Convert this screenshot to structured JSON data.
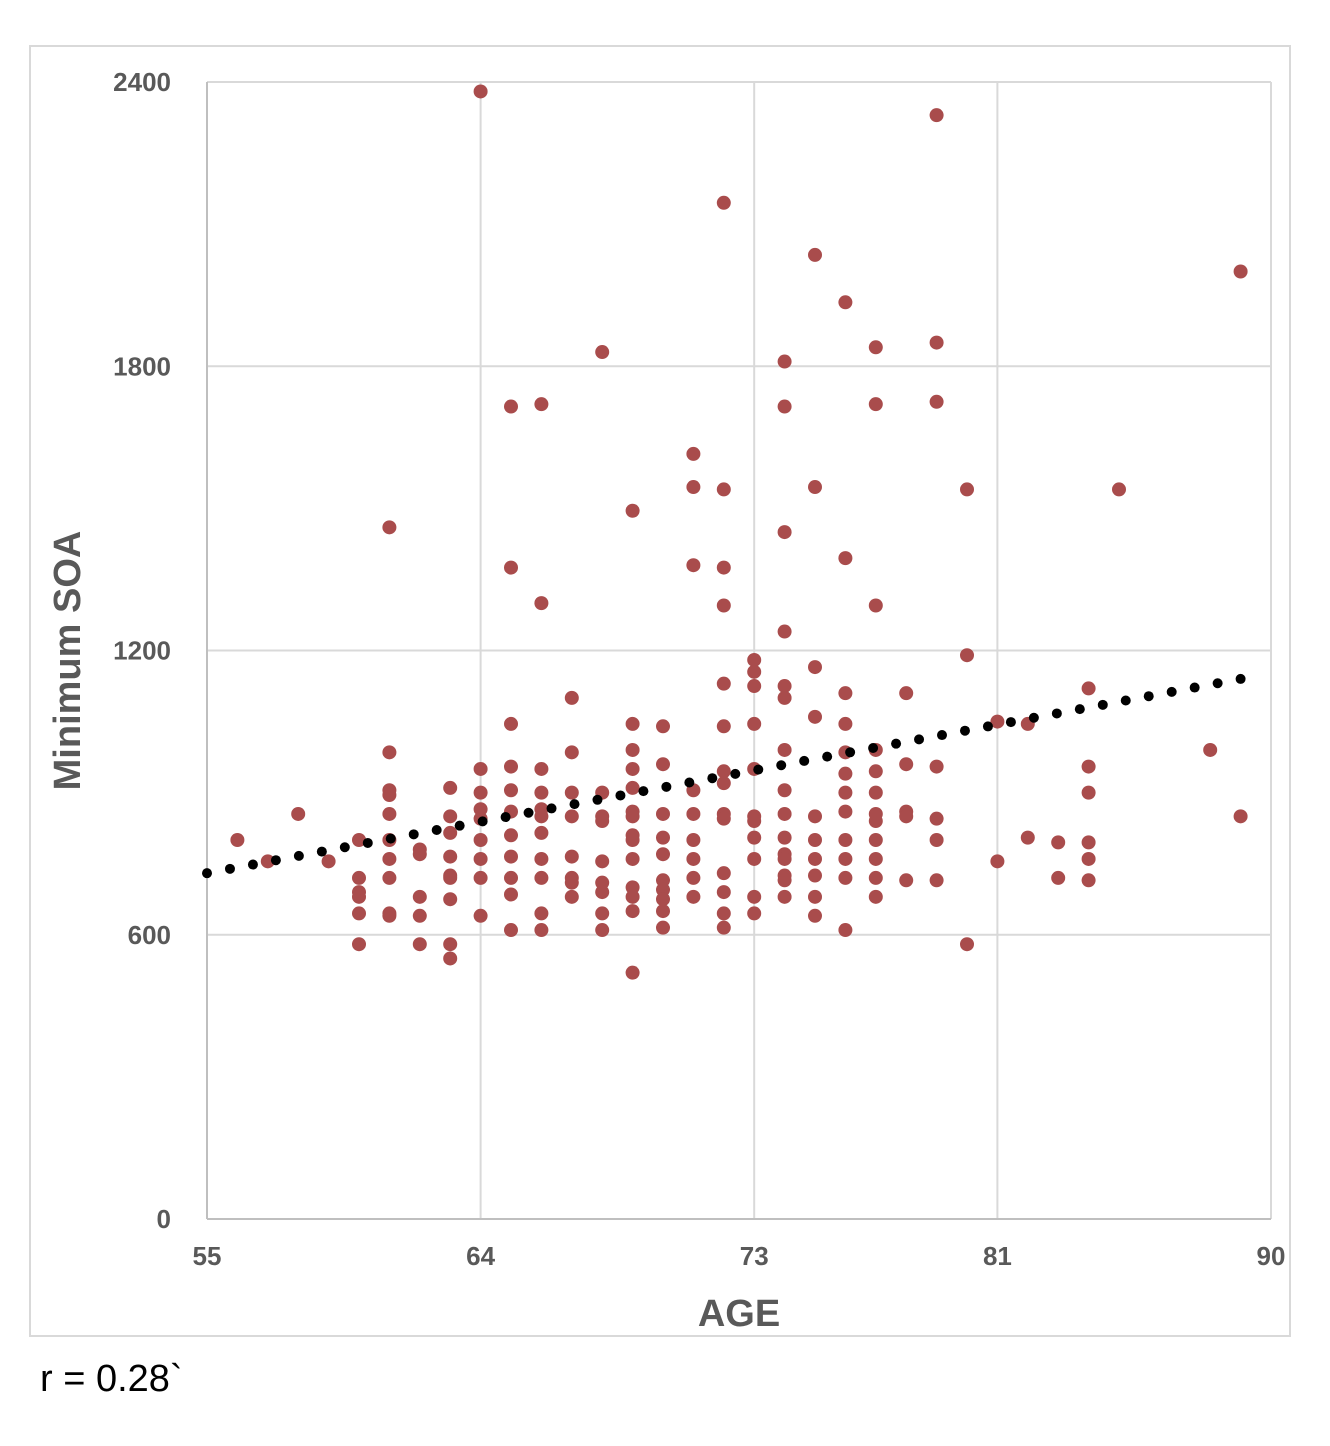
{
  "chart_data": {
    "type": "scatter",
    "title": "",
    "xlabel": "AGE",
    "ylabel": "Minimum SOA",
    "x_ticks": [
      55,
      64,
      73,
      81,
      90
    ],
    "y_ticks": [
      0,
      600,
      1200,
      1800,
      2400
    ],
    "xlim": [
      55,
      90
    ],
    "ylim": [
      0,
      2400
    ],
    "grid": true,
    "legend": "none",
    "point_color": "#a94c4c",
    "trend_color": "#000000",
    "trendline": {
      "style": "dotted",
      "from": [
        55,
        730
      ],
      "to": [
        89,
        1140
      ]
    },
    "series": [
      {
        "points": [
          [
            56,
            800
          ],
          [
            57,
            755
          ],
          [
            58,
            855
          ],
          [
            59,
            755
          ],
          [
            60,
            800
          ],
          [
            60,
            720
          ],
          [
            60,
            690
          ],
          [
            60,
            680
          ],
          [
            60,
            645
          ],
          [
            60,
            580
          ],
          [
            61,
            1460
          ],
          [
            61,
            985
          ],
          [
            61,
            905
          ],
          [
            61,
            895
          ],
          [
            61,
            855
          ],
          [
            61,
            800
          ],
          [
            61,
            760
          ],
          [
            61,
            720
          ],
          [
            61,
            645
          ],
          [
            61,
            640
          ],
          [
            62,
            780
          ],
          [
            62,
            770
          ],
          [
            62,
            680
          ],
          [
            62,
            640
          ],
          [
            62,
            580
          ],
          [
            63,
            910
          ],
          [
            63,
            850
          ],
          [
            63,
            815
          ],
          [
            63,
            765
          ],
          [
            63,
            725
          ],
          [
            63,
            720
          ],
          [
            63,
            675
          ],
          [
            63,
            580
          ],
          [
            63,
            550
          ],
          [
            64,
            2380
          ],
          [
            64,
            950
          ],
          [
            64,
            900
          ],
          [
            64,
            865
          ],
          [
            64,
            845
          ],
          [
            64,
            800
          ],
          [
            64,
            760
          ],
          [
            64,
            720
          ],
          [
            64,
            640
          ],
          [
            65,
            1715
          ],
          [
            65,
            1375
          ],
          [
            65,
            1045
          ],
          [
            65,
            955
          ],
          [
            65,
            905
          ],
          [
            65,
            860
          ],
          [
            65,
            810
          ],
          [
            65,
            765
          ],
          [
            65,
            720
          ],
          [
            65,
            685
          ],
          [
            65,
            610
          ],
          [
            66,
            1720
          ],
          [
            66,
            1300
          ],
          [
            66,
            950
          ],
          [
            66,
            900
          ],
          [
            66,
            865
          ],
          [
            66,
            850
          ],
          [
            66,
            815
          ],
          [
            66,
            760
          ],
          [
            66,
            720
          ],
          [
            66,
            645
          ],
          [
            66,
            610
          ],
          [
            67,
            1100
          ],
          [
            67,
            985
          ],
          [
            67,
            900
          ],
          [
            67,
            850
          ],
          [
            67,
            765
          ],
          [
            67,
            720
          ],
          [
            67,
            710
          ],
          [
            67,
            680
          ],
          [
            68,
            1830
          ],
          [
            68,
            900
          ],
          [
            68,
            850
          ],
          [
            68,
            840
          ],
          [
            68,
            755
          ],
          [
            68,
            710
          ],
          [
            68,
            690
          ],
          [
            68,
            645
          ],
          [
            68,
            610
          ],
          [
            69,
            1495
          ],
          [
            69,
            1045
          ],
          [
            69,
            990
          ],
          [
            69,
            950
          ],
          [
            69,
            910
          ],
          [
            69,
            860
          ],
          [
            69,
            850
          ],
          [
            69,
            810
          ],
          [
            69,
            800
          ],
          [
            69,
            760
          ],
          [
            69,
            700
          ],
          [
            69,
            680
          ],
          [
            69,
            650
          ],
          [
            69,
            520
          ],
          [
            70,
            1040
          ],
          [
            70,
            960
          ],
          [
            70,
            855
          ],
          [
            70,
            805
          ],
          [
            70,
            770
          ],
          [
            70,
            715
          ],
          [
            70,
            695
          ],
          [
            70,
            675
          ],
          [
            70,
            650
          ],
          [
            70,
            615
          ],
          [
            71,
            1615
          ],
          [
            71,
            1545
          ],
          [
            71,
            1380
          ],
          [
            71,
            905
          ],
          [
            71,
            855
          ],
          [
            71,
            800
          ],
          [
            71,
            760
          ],
          [
            71,
            720
          ],
          [
            71,
            680
          ],
          [
            72,
            2145
          ],
          [
            72,
            1540
          ],
          [
            72,
            1375
          ],
          [
            72,
            1295
          ],
          [
            72,
            1130
          ],
          [
            72,
            1040
          ],
          [
            72,
            945
          ],
          [
            72,
            920
          ],
          [
            72,
            855
          ],
          [
            72,
            845
          ],
          [
            72,
            730
          ],
          [
            72,
            690
          ],
          [
            72,
            645
          ],
          [
            72,
            615
          ],
          [
            73,
            1180
          ],
          [
            73,
            1155
          ],
          [
            73,
            1125
          ],
          [
            73,
            1045
          ],
          [
            73,
            950
          ],
          [
            73,
            850
          ],
          [
            73,
            840
          ],
          [
            73,
            805
          ],
          [
            73,
            760
          ],
          [
            73,
            680
          ],
          [
            73,
            645
          ],
          [
            74,
            1810
          ],
          [
            74,
            1715
          ],
          [
            74,
            1450
          ],
          [
            74,
            1240
          ],
          [
            74,
            1125
          ],
          [
            74,
            1100
          ],
          [
            74,
            990
          ],
          [
            74,
            905
          ],
          [
            74,
            855
          ],
          [
            74,
            805
          ],
          [
            74,
            770
          ],
          [
            74,
            760
          ],
          [
            74,
            725
          ],
          [
            74,
            715
          ],
          [
            74,
            680
          ],
          [
            75,
            2035
          ],
          [
            75,
            1545
          ],
          [
            75,
            1165
          ],
          [
            75,
            1060
          ],
          [
            75,
            850
          ],
          [
            75,
            800
          ],
          [
            75,
            760
          ],
          [
            75,
            725
          ],
          [
            75,
            680
          ],
          [
            75,
            640
          ],
          [
            76,
            1935
          ],
          [
            76,
            1395
          ],
          [
            76,
            1110
          ],
          [
            76,
            1045
          ],
          [
            76,
            985
          ],
          [
            76,
            940
          ],
          [
            76,
            900
          ],
          [
            76,
            860
          ],
          [
            76,
            800
          ],
          [
            76,
            760
          ],
          [
            76,
            720
          ],
          [
            76,
            610
          ],
          [
            77,
            1840
          ],
          [
            77,
            1720
          ],
          [
            77,
            1295
          ],
          [
            77,
            990
          ],
          [
            77,
            945
          ],
          [
            77,
            900
          ],
          [
            77,
            855
          ],
          [
            77,
            840
          ],
          [
            77,
            800
          ],
          [
            77,
            760
          ],
          [
            77,
            720
          ],
          [
            77,
            680
          ],
          [
            78,
            1110
          ],
          [
            78,
            960
          ],
          [
            78,
            860
          ],
          [
            78,
            850
          ],
          [
            78,
            715
          ],
          [
            79,
            2330
          ],
          [
            79,
            1850
          ],
          [
            79,
            1725
          ],
          [
            79,
            955
          ],
          [
            79,
            845
          ],
          [
            79,
            800
          ],
          [
            79,
            715
          ],
          [
            80,
            1540
          ],
          [
            80,
            1190
          ],
          [
            80,
            580
          ],
          [
            81,
            1050
          ],
          [
            81,
            755
          ],
          [
            82,
            1045
          ],
          [
            82,
            805
          ],
          [
            83,
            795
          ],
          [
            83,
            720
          ],
          [
            84,
            1120
          ],
          [
            84,
            955
          ],
          [
            84,
            900
          ],
          [
            84,
            795
          ],
          [
            84,
            760
          ],
          [
            84,
            715
          ],
          [
            85,
            1540
          ],
          [
            88,
            990
          ],
          [
            89,
            2000
          ],
          [
            89,
            850
          ]
        ]
      }
    ],
    "annotation": "r = 0.28`"
  }
}
